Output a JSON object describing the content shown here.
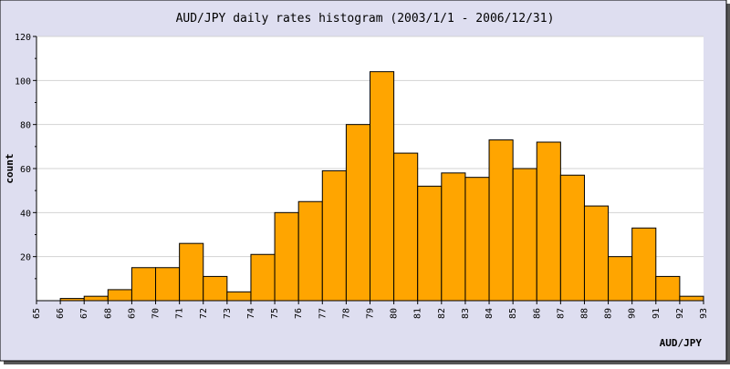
{
  "chart_data": {
    "type": "bar",
    "title": "AUD/JPY daily rates histogram (2003/1/1 - 2006/12/31)",
    "xlabel": "AUD/JPY",
    "ylabel": "count",
    "bin_edges": [
      65,
      66,
      67,
      68,
      69,
      70,
      71,
      72,
      73,
      74,
      75,
      76,
      77,
      78,
      79,
      80,
      81,
      82,
      83,
      84,
      85,
      86,
      87,
      88,
      89,
      90,
      91,
      92,
      93
    ],
    "values": [
      0,
      1,
      2,
      5,
      15,
      15,
      26,
      11,
      4,
      21,
      40,
      45,
      59,
      80,
      104,
      67,
      52,
      58,
      56,
      73,
      60,
      72,
      57,
      43,
      20,
      33,
      11,
      2
    ],
    "y_ticks": [
      20,
      40,
      60,
      80,
      100,
      120
    ],
    "ylim": [
      0,
      120
    ],
    "xlim": [
      65,
      93
    ],
    "grid": true,
    "colors": {
      "frame": "#dedef0",
      "plot_bg": "#ffffff",
      "bar_fill": "#ffa500",
      "bar_edge": "#000000",
      "grid": "#d3d3d3",
      "shadow": "#555555"
    }
  }
}
